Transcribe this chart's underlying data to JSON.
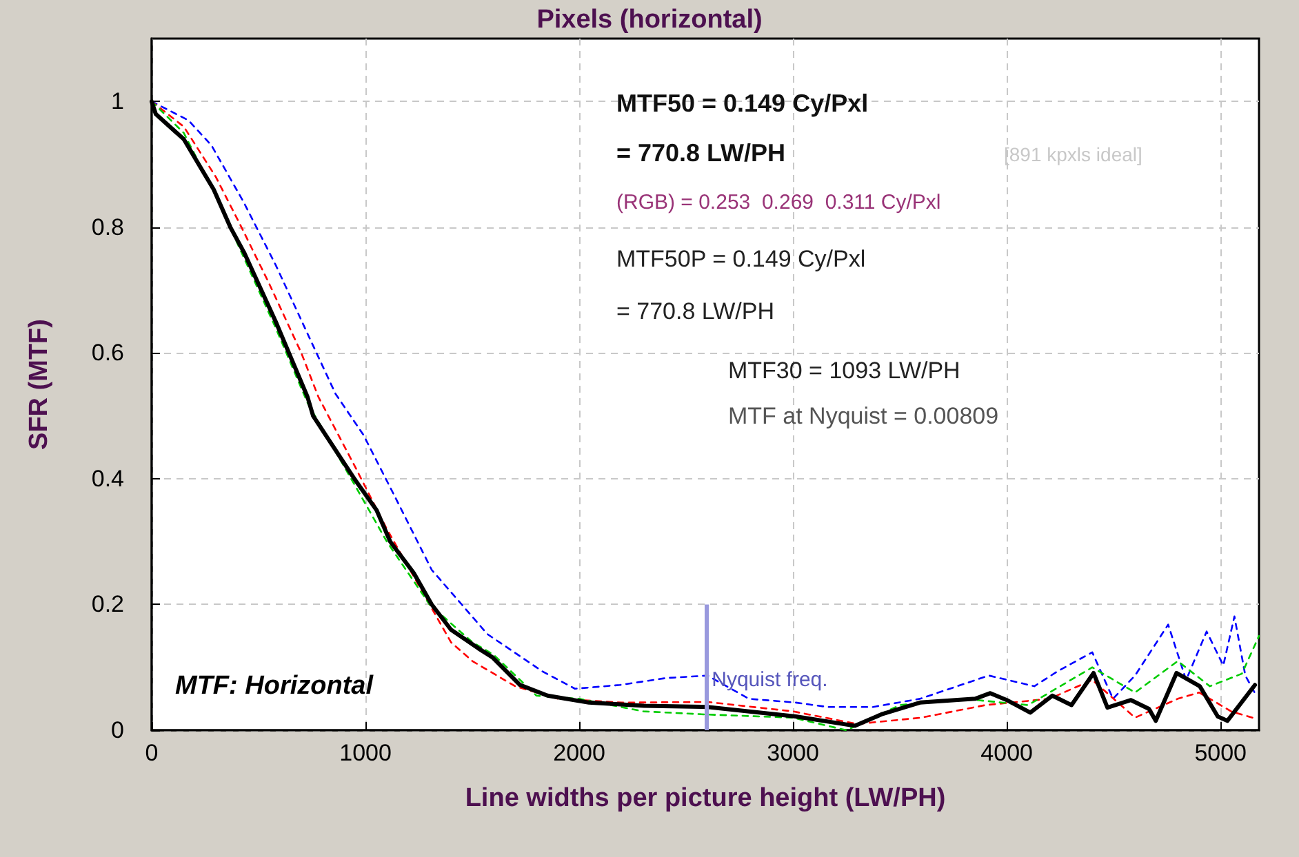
{
  "chart_data": {
    "type": "line",
    "title": "Pixels (horizontal)",
    "xlabel": "Line widths per picture height (LW/PH)",
    "ylabel": "SFR (MTF)",
    "xlim": [
      0,
      5180
    ],
    "ylim": [
      0,
      1.1
    ],
    "xticks": [
      0,
      1000,
      2000,
      3000,
      4000,
      5000
    ],
    "yticks": [
      0,
      0.2,
      0.4,
      0.6,
      0.8,
      1
    ],
    "grid": true,
    "marker": "none",
    "series": [
      {
        "color": "#0000ff",
        "line_style": "dashed",
        "x": [
          0,
          172,
          280,
          430,
          580,
          730,
          860,
          990,
          1140,
          1310,
          1570,
          1826,
          1980,
          2190,
          2406,
          2600,
          2794,
          3013,
          3161,
          3374,
          3594,
          3916,
          4129,
          4239,
          4400,
          4497,
          4600,
          4755,
          4839,
          4935,
          5013,
          5065,
          5116,
          5161
        ],
        "values": [
          1.0,
          0.97,
          0.93,
          0.84,
          0.74,
          0.63,
          0.535,
          0.47,
          0.37,
          0.255,
          0.153,
          0.094,
          0.066,
          0.072,
          0.083,
          0.087,
          0.05,
          0.044,
          0.037,
          0.037,
          0.05,
          0.087,
          0.07,
          0.094,
          0.124,
          0.05,
          0.087,
          0.168,
          0.08,
          0.157,
          0.103,
          0.181,
          0.087,
          0.059
        ]
      },
      {
        "color": "#ff0000",
        "line_style": "dashed",
        "x": [
          0,
          150,
          300,
          420,
          550,
          700,
          780,
          950,
          1100,
          1300,
          1400,
          1500,
          1700,
          1900,
          2200,
          2600,
          3000,
          3300,
          3600,
          3900,
          4200,
          4400,
          4600,
          4800,
          4900,
          5050,
          5150
        ],
        "values": [
          1.0,
          0.96,
          0.88,
          0.8,
          0.71,
          0.6,
          0.53,
          0.42,
          0.32,
          0.2,
          0.14,
          0.11,
          0.07,
          0.05,
          0.044,
          0.045,
          0.03,
          0.01,
          0.02,
          0.04,
          0.05,
          0.08,
          0.02,
          0.05,
          0.06,
          0.03,
          0.02
        ]
      },
      {
        "color": "#00cc00",
        "line_style": "dashed",
        "x": [
          0,
          150,
          300,
          420,
          580,
          730,
          950,
          1100,
          1300,
          1500,
          1600,
          1800,
          2000,
          2300,
          2600,
          3000,
          3250,
          3500,
          3800,
          4100,
          4400,
          4600,
          4800,
          4950,
          5100,
          5180
        ],
        "values": [
          1.0,
          0.95,
          0.85,
          0.76,
          0.64,
          0.52,
          0.39,
          0.3,
          0.2,
          0.14,
          0.12,
          0.055,
          0.05,
          0.03,
          0.025,
          0.02,
          0.0,
          0.04,
          0.05,
          0.04,
          0.1,
          0.06,
          0.11,
          0.07,
          0.09,
          0.15
        ]
      },
      {
        "color": "#000000",
        "line_style": "solid",
        "x": [
          0,
          19,
          150,
          290,
          368,
          432,
          580,
          729,
          755,
          948,
          1052,
          1116,
          1226,
          1310,
          1400,
          1529,
          1594,
          1723,
          1852,
          2045,
          2303,
          2600,
          3013,
          3290,
          3419,
          3594,
          3852,
          3923,
          4000,
          4110,
          4213,
          4303,
          4406,
          4471,
          4581,
          4665,
          4697,
          4794,
          4903,
          4987,
          5032,
          5161
        ],
        "values": [
          1.0,
          0.98,
          0.94,
          0.86,
          0.8,
          0.76,
          0.65,
          0.53,
          0.5,
          0.4,
          0.35,
          0.3,
          0.25,
          0.2,
          0.16,
          0.13,
          0.116,
          0.072,
          0.055,
          0.044,
          0.039,
          0.037,
          0.022,
          0.007,
          0.026,
          0.044,
          0.05,
          0.059,
          0.048,
          0.028,
          0.055,
          0.04,
          0.091,
          0.036,
          0.048,
          0.034,
          0.015,
          0.091,
          0.07,
          0.022,
          0.015,
          0.072
        ]
      }
    ],
    "ref_lines": [
      {
        "axis": "x",
        "value": 2594,
        "label": "Nyquist freq.",
        "color": "#9999dd"
      }
    ],
    "annotations": [
      "MTF50 = 0.149 Cy/Pxl",
      "= 770.8 LW/PH",
      "[891 kpxls ideal]",
      "(RGB) = 0.253  0.269  0.311 Cy/Pxl",
      "MTF50P = 0.149 Cy/Pxl",
      "= 770.8 LW/PH",
      "MTF30 = 1093 LW/PH",
      "MTF at Nyquist = 0.00809",
      "MTF: Horizontal"
    ]
  }
}
